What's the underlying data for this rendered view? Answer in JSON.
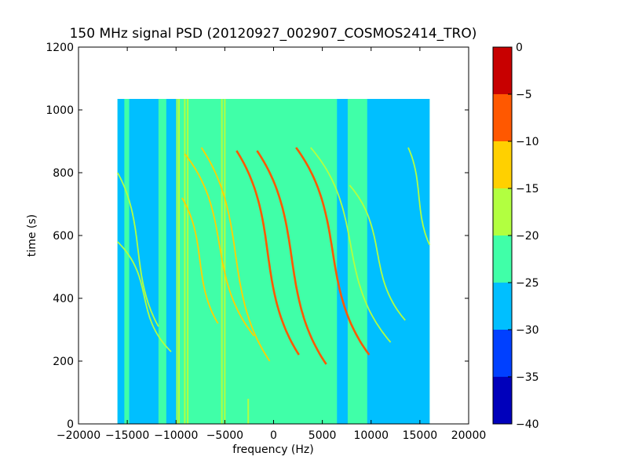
{
  "chart_data": {
    "type": "heatmap",
    "title": "150 MHz signal PSD (20120927_002907_COSMOS2414_TRO)",
    "xlabel": "frequency (Hz)",
    "ylabel": "time (s)",
    "xlim": [
      -20000,
      20000
    ],
    "ylim": [
      0,
      1200
    ],
    "x_ticks": [
      -20000,
      -15000,
      -10000,
      -5000,
      0,
      5000,
      10000,
      15000,
      20000
    ],
    "x_tick_labels": [
      "−20000",
      "−15000",
      "−10000",
      "−5000",
      "0",
      "5000",
      "10000",
      "15000",
      "20000"
    ],
    "y_ticks": [
      0,
      200,
      400,
      600,
      800,
      1000,
      1200
    ],
    "y_tick_labels": [
      "0",
      "200",
      "400",
      "600",
      "800",
      "1000",
      "1200"
    ],
    "data_extent": {
      "freq_min": -16000,
      "freq_max": 16000,
      "time_min": 0,
      "time_max": 1035
    },
    "background_level": -22.5,
    "low_level_bands": [
      {
        "from": -16000,
        "to": -15300,
        "level": -27.5
      },
      {
        "from": -14800,
        "to": -11800,
        "level": -27.5
      },
      {
        "from": -11000,
        "to": -9800,
        "level": -27.5
      },
      {
        "from": 6500,
        "to": 7600,
        "level": -27.5
      },
      {
        "from": 9600,
        "to": 16000,
        "level": -27.5
      }
    ],
    "vertical_lines": [
      {
        "freq": -9900,
        "time_from": 0,
        "time_to": 1035,
        "level": -17.5
      },
      {
        "freq": -9700,
        "time_from": 0,
        "time_to": 1035,
        "level": -17.5
      },
      {
        "freq": -9100,
        "time_from": 0,
        "time_to": 1035,
        "level": -17.5
      },
      {
        "freq": -8800,
        "time_from": 0,
        "time_to": 1035,
        "level": -17.5
      },
      {
        "freq": -5300,
        "time_from": 0,
        "time_to": 1035,
        "level": -17.5
      },
      {
        "freq": -5000,
        "time_from": 0,
        "time_to": 1035,
        "level": -17.5
      },
      {
        "freq": -2600,
        "time_from": 0,
        "time_to": 80,
        "level": -17.5
      },
      {
        "freq": 10000,
        "time_from": 0,
        "time_to": 1035,
        "level": -27.5
      }
    ],
    "doppler_traces": [
      {
        "freq_start": -3800,
        "time_start": 870,
        "freq_end": 2600,
        "time_end": 220,
        "level": -7.5
      },
      {
        "freq_start": -1700,
        "time_start": 870,
        "freq_end": 5400,
        "time_end": 190,
        "level": -7.5
      },
      {
        "freq_start": 2300,
        "time_start": 880,
        "freq_end": 9800,
        "time_end": 220,
        "level": -7.5
      },
      {
        "freq_start": -7400,
        "time_start": 880,
        "freq_end": -400,
        "time_end": 200,
        "level": -12.5
      },
      {
        "freq_start": -9100,
        "time_start": 860,
        "freq_end": -2000,
        "time_end": 280,
        "level": -12.5
      },
      {
        "freq_start": -9400,
        "time_start": 720,
        "freq_end": -5700,
        "time_end": 320,
        "level": -12.5
      },
      {
        "freq_start": -16000,
        "time_start": 800,
        "freq_end": -11800,
        "time_end": 310,
        "level": -17.5
      },
      {
        "freq_start": -16000,
        "time_start": 580,
        "freq_end": -10500,
        "time_end": 230,
        "level": -17.5
      },
      {
        "freq_start": 3800,
        "time_start": 880,
        "freq_end": 12000,
        "time_end": 260,
        "level": -17.5
      },
      {
        "freq_start": 7800,
        "time_start": 760,
        "freq_end": 13500,
        "time_end": 330,
        "level": -17.5
      },
      {
        "freq_start": 13800,
        "time_start": 880,
        "freq_end": 16000,
        "time_end": 570,
        "level": -17.5
      }
    ],
    "colorbar": {
      "levels": [
        -40,
        -35,
        -30,
        -25,
        -20,
        -15,
        -10,
        -5,
        0
      ],
      "tick_labels": [
        "−40",
        "−35",
        "−30",
        "−25",
        "−20",
        "−15",
        "−10",
        "−5",
        "0"
      ],
      "colors": [
        "#0000bb",
        "#0040ff",
        "#00bfff",
        "#40ffa8",
        "#b2ff40",
        "#ffd000",
        "#ff5800",
        "#c80000"
      ]
    }
  }
}
